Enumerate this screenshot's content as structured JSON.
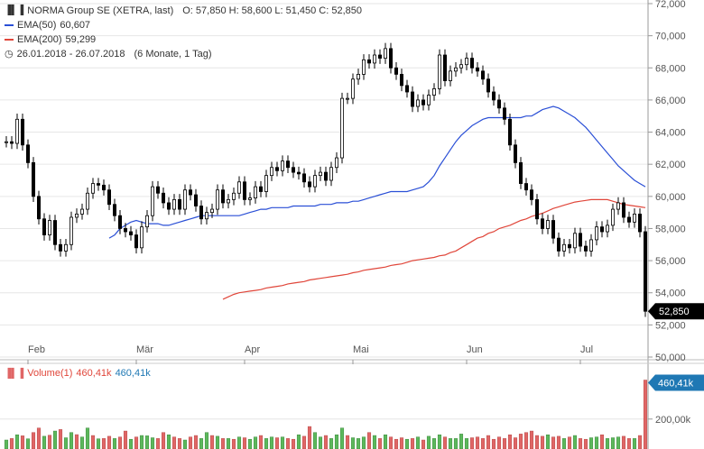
{
  "legend": {
    "title": "NORMA Group SE (XETRA, last)",
    "ohlc": "O: 57,850  H: 58,600  L: 51,450  C: 52,850",
    "ema50": "EMA(50)",
    "ema50_value": "60,607",
    "ema200": "EMA(200)",
    "ema200_value": "59,299",
    "range": "26.01.2018 - 26.07.2018",
    "period": "(6 Monate, 1 Tag)"
  },
  "volume_legend": {
    "label": "Volume(1)",
    "value_red": "460,41k",
    "value_blue": "460,41k"
  },
  "colors": {
    "up": "#5cb85c",
    "down": "#e06666",
    "candle": "#000000",
    "ema50": "#2a4fd6",
    "ema200": "#e0463a",
    "badge_dark": "#000000",
    "badge_vol": "#1f78b4",
    "grid": "#e6e6e6"
  },
  "chart_data": [
    {
      "type": "candlestick",
      "title": "NORMA Group SE (XETRA, last)",
      "ylim": [
        50000,
        72000
      ],
      "yticks": [
        "50,000",
        "52,000",
        "54,000",
        "56,000",
        "58,000",
        "60,000",
        "62,000",
        "64,000",
        "66,000",
        "68,000",
        "70,000",
        "72,000"
      ],
      "ytick_values": [
        50,
        52,
        54,
        56,
        58,
        60,
        62,
        64,
        66,
        68,
        70,
        72
      ],
      "month_labels": [
        "Feb",
        "Mär",
        "Apr",
        "Mai",
        "Jun",
        "Jul"
      ],
      "month_positions": [
        4,
        24,
        44,
        64,
        85,
        106
      ],
      "last_price_label": "52,850",
      "last_price": 52.85,
      "close": [
        63.4,
        63.3,
        64.8,
        63.2,
        62.1,
        60.0,
        58.6,
        57.6,
        58.5,
        57.0,
        56.6,
        57.0,
        58.7,
        58.9,
        59.2,
        60.2,
        60.8,
        60.7,
        60.4,
        59.5,
        58.8,
        58.0,
        57.8,
        57.6,
        56.8,
        58.1,
        58.8,
        60.6,
        60.2,
        59.6,
        59.2,
        59.8,
        59.2,
        60.4,
        60.1,
        59.4,
        58.6,
        59.0,
        59.2,
        60.4,
        59.6,
        59.8,
        60.2,
        60.9,
        59.8,
        59.9,
        60.6,
        60.3,
        61.3,
        61.8,
        61.6,
        62.2,
        61.8,
        61.5,
        61.4,
        60.9,
        60.6,
        61.3,
        61.5,
        61.0,
        61.8,
        62.4,
        66.1,
        66.1,
        67.3,
        67.6,
        68.5,
        68.3,
        68.8,
        68.6,
        69.2,
        68.0,
        67.6,
        66.9,
        66.5,
        65.6,
        66.0,
        65.7,
        66.3,
        66.7,
        68.8,
        67.2,
        67.8,
        68.0,
        68.2,
        68.6,
        68.0,
        67.8,
        67.3,
        66.5,
        66.0,
        65.5,
        64.8,
        63.2,
        62.1,
        60.8,
        60.4,
        59.8,
        58.6,
        58.0,
        58.5,
        57.4,
        56.6,
        57.0,
        56.8,
        57.7,
        56.9,
        56.6,
        57.3,
        58.1,
        57.8,
        58.2,
        59.2,
        59.6,
        58.7,
        58.4,
        58.9,
        57.8,
        52.85
      ],
      "ema50": [
        57.4,
        57.6,
        58.0,
        58.2,
        58.4,
        58.5,
        58.4,
        58.3,
        58.3,
        58.3,
        58.2,
        58.2,
        58.3,
        58.4,
        58.5,
        58.6,
        58.7,
        58.8,
        58.8,
        58.8,
        58.8,
        58.8,
        58.8,
        58.8,
        58.8,
        58.9,
        59.0,
        59.1,
        59.2,
        59.2,
        59.3,
        59.3,
        59.3,
        59.3,
        59.4,
        59.4,
        59.4,
        59.4,
        59.4,
        59.5,
        59.5,
        59.5,
        59.6,
        59.6,
        59.6,
        59.7,
        59.7,
        59.8,
        59.9,
        60.0,
        60.1,
        60.2,
        60.3,
        60.3,
        60.3,
        60.3,
        60.4,
        60.5,
        60.6,
        60.9,
        61.3,
        61.9,
        62.4,
        62.9,
        63.4,
        63.8,
        64.1,
        64.4,
        64.6,
        64.8,
        64.9,
        64.9,
        64.9,
        64.9,
        64.9,
        64.9,
        64.9,
        65.0,
        65.0,
        65.2,
        65.4,
        65.5,
        65.6,
        65.5,
        65.3,
        65.1,
        64.9,
        64.6,
        64.3,
        63.9,
        63.5,
        63.1,
        62.7,
        62.3,
        61.9,
        61.6,
        61.3,
        61.0,
        60.8,
        60.6
      ],
      "ema200": [
        53.6,
        53.75,
        53.9,
        54.0,
        54.05,
        54.1,
        54.15,
        54.2,
        54.3,
        54.35,
        54.4,
        54.45,
        54.55,
        54.6,
        54.65,
        54.7,
        54.8,
        54.85,
        54.9,
        54.95,
        55.0,
        55.05,
        55.1,
        55.15,
        55.25,
        55.3,
        55.4,
        55.45,
        55.5,
        55.55,
        55.6,
        55.7,
        55.75,
        55.8,
        55.9,
        56.0,
        56.05,
        56.1,
        56.15,
        56.2,
        56.3,
        56.35,
        56.5,
        56.6,
        56.8,
        57.0,
        57.2,
        57.4,
        57.5,
        57.7,
        57.8,
        58.0,
        58.1,
        58.2,
        58.35,
        58.5,
        58.6,
        58.75,
        58.85,
        58.95,
        59.1,
        59.25,
        59.35,
        59.45,
        59.55,
        59.65,
        59.7,
        59.75,
        59.8,
        59.8,
        59.8,
        59.8,
        59.7,
        59.6,
        59.5,
        59.45,
        59.4,
        59.35,
        59.3
      ]
    },
    {
      "type": "bar",
      "title": "Volume(1)",
      "yticks": [
        "200,00k"
      ],
      "last_volume_label": "460,41k",
      "volume_k": [
        60,
        70,
        95,
        88,
        68,
        110,
        140,
        85,
        92,
        120,
        130,
        75,
        110,
        96,
        80,
        140,
        90,
        68,
        70,
        85,
        70,
        80,
        120,
        65,
        80,
        90,
        88,
        75,
        70,
        110,
        95,
        80,
        70,
        60,
        80,
        90,
        70,
        110,
        90,
        85,
        70,
        70,
        65,
        80,
        75,
        65,
        80,
        90,
        70,
        80,
        75,
        80,
        70,
        65,
        95,
        85,
        150,
        110,
        80,
        90,
        70,
        95,
        140,
        90,
        75,
        70,
        80,
        110,
        90,
        70,
        95,
        80,
        65,
        75,
        65,
        70,
        80,
        60,
        85,
        70,
        95,
        80,
        70,
        70,
        100,
        70,
        75,
        80,
        70,
        90,
        65,
        80,
        70,
        95,
        75,
        100,
        110,
        120,
        90,
        85,
        95,
        80,
        85,
        70,
        80,
        90,
        70,
        65,
        75,
        80,
        95,
        70,
        75,
        80,
        85,
        70,
        70,
        90,
        460.41
      ],
      "volume_up": [
        1,
        0,
        1,
        0,
        1,
        0,
        0,
        1,
        0,
        1,
        0,
        1,
        1,
        0,
        1,
        1,
        0,
        1,
        0,
        0,
        1,
        0,
        0,
        1,
        0,
        1,
        1,
        1,
        0,
        0,
        1,
        0,
        0,
        1,
        0,
        0,
        1,
        1,
        0,
        1,
        0,
        1,
        0,
        1,
        0,
        1,
        1,
        0,
        1,
        1,
        0,
        1,
        0,
        0,
        1,
        0,
        0,
        1,
        1,
        0,
        1,
        1,
        1,
        0,
        1,
        1,
        1,
        0,
        1,
        0,
        1,
        0,
        0,
        0,
        1,
        0,
        1,
        0,
        1,
        1,
        1,
        0,
        1,
        1,
        1,
        1,
        0,
        0,
        0,
        0,
        0,
        0,
        0,
        0,
        0,
        0,
        0,
        0,
        0,
        0,
        1,
        0,
        0,
        1,
        0,
        1,
        0,
        0,
        1,
        1,
        0,
        1,
        1,
        1,
        0,
        0,
        1,
        0,
        0
      ]
    }
  ]
}
